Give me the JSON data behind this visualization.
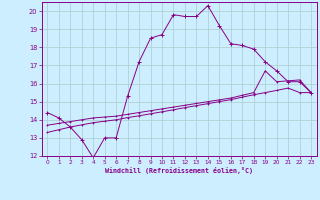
{
  "xlabel": "Windchill (Refroidissement éolien,°C)",
  "xlim": [
    -0.5,
    23.5
  ],
  "ylim": [
    12,
    20.5
  ],
  "xticks": [
    0,
    1,
    2,
    3,
    4,
    5,
    6,
    7,
    8,
    9,
    10,
    11,
    12,
    13,
    14,
    15,
    16,
    17,
    18,
    19,
    20,
    21,
    22,
    23
  ],
  "yticks": [
    12,
    13,
    14,
    15,
    16,
    17,
    18,
    19,
    20
  ],
  "background_color": "#cceeff",
  "grid_color": "#aacccc",
  "line_color": "#880088",
  "line1_x": [
    0,
    1,
    2,
    3,
    4,
    5,
    6,
    7,
    8,
    9,
    10,
    11,
    12,
    13,
    14,
    15,
    16,
    17,
    18,
    19,
    20,
    21,
    22,
    23
  ],
  "line1_y": [
    14.4,
    14.1,
    13.6,
    12.9,
    11.9,
    13.0,
    13.0,
    15.3,
    17.2,
    18.5,
    18.7,
    19.8,
    19.7,
    19.7,
    20.3,
    19.2,
    18.2,
    18.1,
    17.9,
    17.2,
    16.7,
    16.1,
    16.1,
    15.5
  ],
  "line2_x": [
    0,
    1,
    2,
    3,
    4,
    5,
    6,
    7,
    8,
    9,
    10,
    11,
    12,
    13,
    14,
    15,
    16,
    17,
    18,
    19,
    20,
    21,
    22,
    23
  ],
  "line2_y": [
    13.7,
    13.8,
    13.9,
    14.0,
    14.1,
    14.15,
    14.2,
    14.3,
    14.4,
    14.5,
    14.6,
    14.7,
    14.8,
    14.9,
    15.0,
    15.1,
    15.2,
    15.35,
    15.5,
    16.7,
    16.1,
    16.15,
    16.2,
    15.5
  ],
  "line3_x": [
    0,
    1,
    2,
    3,
    4,
    5,
    6,
    7,
    8,
    9,
    10,
    11,
    12,
    13,
    14,
    15,
    16,
    17,
    18,
    19,
    20,
    21,
    22,
    23
  ],
  "line3_y": [
    13.3,
    13.45,
    13.6,
    13.72,
    13.84,
    13.92,
    14.0,
    14.12,
    14.22,
    14.33,
    14.44,
    14.55,
    14.67,
    14.78,
    14.89,
    15.0,
    15.11,
    15.25,
    15.38,
    15.5,
    15.62,
    15.75,
    15.5,
    15.5
  ]
}
